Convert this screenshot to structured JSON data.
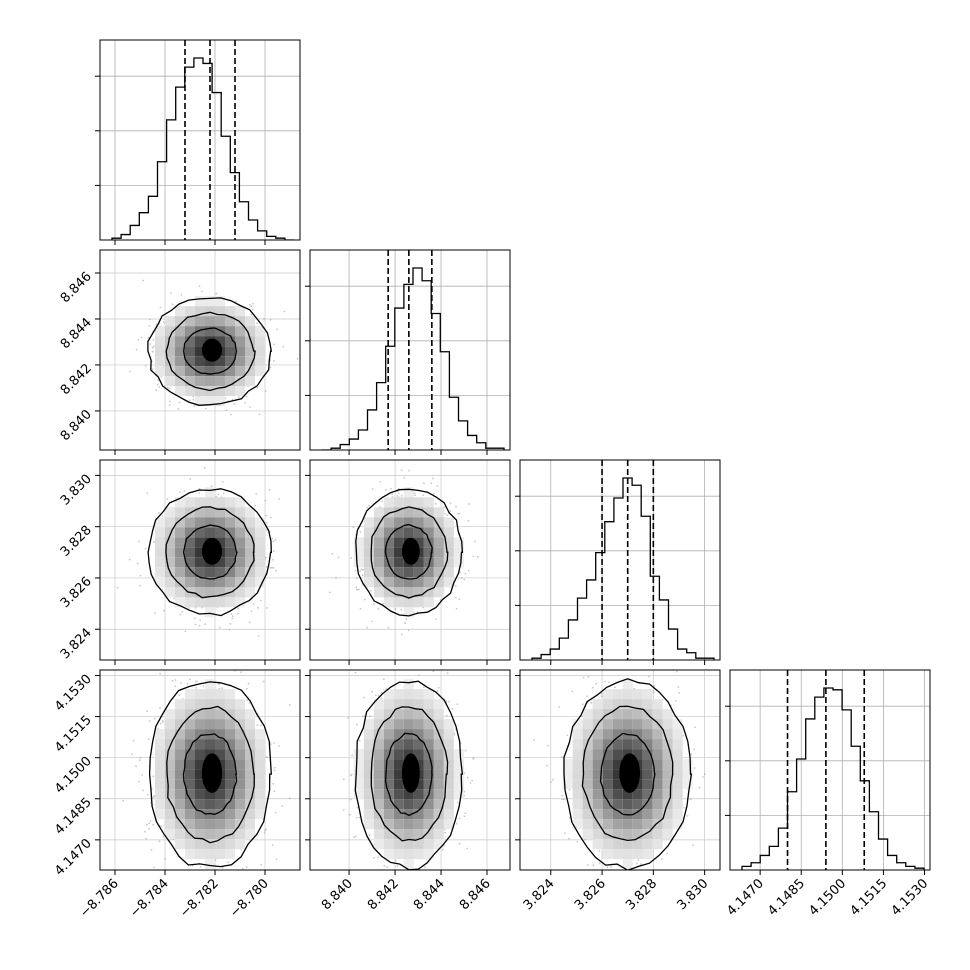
{
  "chart_data": {
    "type": "corner",
    "parameters": [
      {
        "ticks": [
          "−8.786",
          "−8.784",
          "−8.782",
          "−8.780"
        ],
        "tick_values": [
          -8.786,
          -8.784,
          -8.782,
          -8.78
        ],
        "range": [
          -8.7866,
          -8.7786
        ],
        "median": -8.7822,
        "q16": -8.7832,
        "q84": -8.7812
      },
      {
        "ticks": [
          "8.840",
          "8.842",
          "8.844",
          "8.846"
        ],
        "tick_values": [
          8.84,
          8.842,
          8.844,
          8.846
        ],
        "range": [
          8.8383,
          8.847
        ],
        "median": 8.8426,
        "q16": 8.8417,
        "q84": 8.8436
      },
      {
        "ticks": [
          "3.824",
          "3.826",
          "3.828",
          "3.830"
        ],
        "tick_values": [
          3.824,
          3.826,
          3.828,
          3.83
        ],
        "range": [
          3.8228,
          3.8306
        ],
        "median": 3.827,
        "q16": 3.826,
        "q84": 3.828
      },
      {
        "ticks": [
          "4.1470",
          "4.1485",
          "4.1500",
          "4.1515",
          "4.1530"
        ],
        "tick_values": [
          4.147,
          4.1485,
          4.15,
          4.1515,
          4.153
        ],
        "range": [
          4.1459,
          4.1532
        ],
        "median": 4.1494,
        "q16": 4.148,
        "q84": 4.1508
      }
    ],
    "histograms": [
      [
        0.01,
        0.03,
        0.08,
        0.15,
        0.24,
        0.43,
        0.66,
        0.84,
        0.95,
        1.0,
        0.97,
        0.81,
        0.57,
        0.37,
        0.21,
        0.11,
        0.05,
        0.02,
        0.01,
        0.0
      ],
      [
        0.0,
        0.01,
        0.03,
        0.06,
        0.11,
        0.22,
        0.37,
        0.57,
        0.78,
        0.91,
        1.0,
        0.93,
        0.75,
        0.54,
        0.29,
        0.16,
        0.08,
        0.04,
        0.01,
        0.01
      ],
      [
        0.01,
        0.03,
        0.06,
        0.12,
        0.22,
        0.34,
        0.44,
        0.59,
        0.76,
        0.89,
        1.0,
        0.96,
        0.79,
        0.46,
        0.33,
        0.17,
        0.06,
        0.04,
        0.01,
        0.01
      ],
      [
        0.02,
        0.04,
        0.08,
        0.13,
        0.23,
        0.43,
        0.61,
        0.83,
        0.95,
        1.0,
        0.99,
        0.88,
        0.68,
        0.49,
        0.32,
        0.17,
        0.08,
        0.04,
        0.02,
        0.01
      ]
    ],
    "quantile_style": "dashed",
    "grid": true
  }
}
